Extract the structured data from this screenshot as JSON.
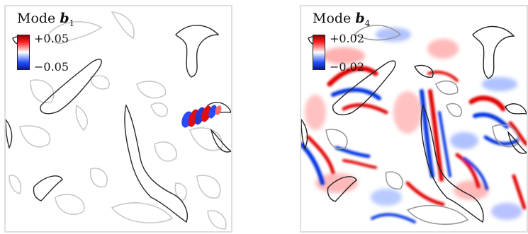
{
  "panels": [
    {
      "title_prefix": "Mode ",
      "symbol": "b",
      "subscript": "1",
      "colorbar": {
        "max_label": "+0.05",
        "min_label": "−0.05",
        "positive_color": "#e00000",
        "negative_color": "#0030e0"
      }
    },
    {
      "title_prefix": "Mode ",
      "symbol": "b",
      "subscript": "4",
      "colorbar": {
        "max_label": "+0.02",
        "min_label": "−0.02",
        "positive_color": "#e00000",
        "negative_color": "#0030e0"
      }
    }
  ]
}
